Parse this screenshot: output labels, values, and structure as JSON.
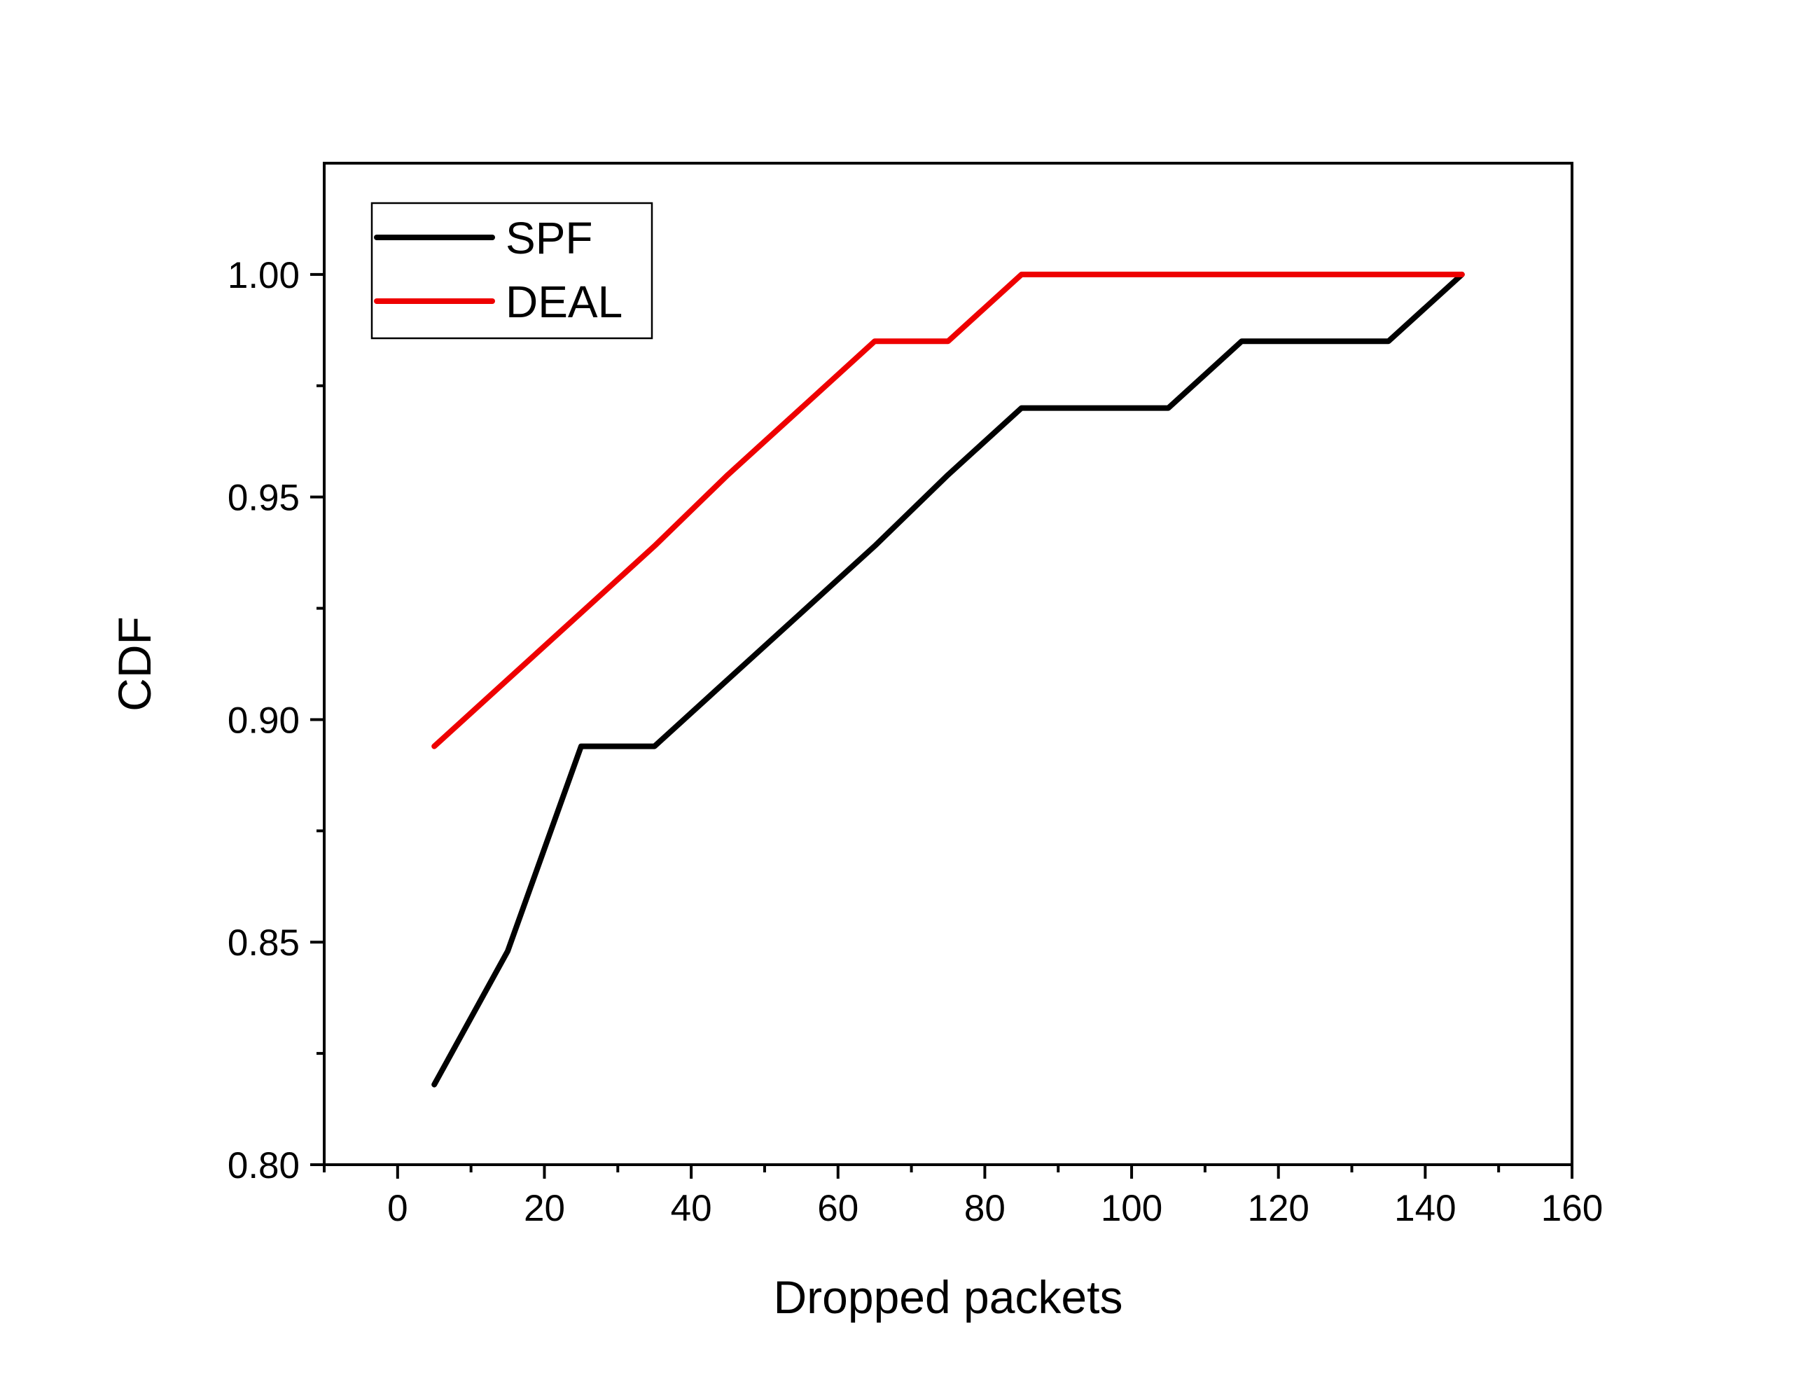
{
  "chart_data": {
    "type": "line",
    "xlabel": "Dropped packets",
    "ylabel": "CDF",
    "xlim": [
      -10,
      160
    ],
    "ylim": [
      0.8,
      1.025
    ],
    "xticks": [
      0,
      20,
      40,
      60,
      80,
      100,
      120,
      140,
      160
    ],
    "xtick_labels": [
      "0",
      "20",
      "40",
      "60",
      "80",
      "100",
      "120",
      "140",
      "160"
    ],
    "xminor": [
      -10,
      10,
      30,
      50,
      70,
      90,
      110,
      130,
      150
    ],
    "yticks": [
      0.8,
      0.85,
      0.9,
      0.95,
      1.0
    ],
    "ytick_labels": [
      "0.80",
      "0.85",
      "0.90",
      "0.95",
      "1.00"
    ],
    "yminor": [
      0.825,
      0.875,
      0.925,
      0.975
    ],
    "grid": false,
    "legend_position": "top-left",
    "series": [
      {
        "name": "SPF",
        "color": "#000000",
        "x": [
          5,
          15,
          25,
          35,
          45,
          55,
          65,
          75,
          85,
          95,
          105,
          115,
          125,
          135,
          145
        ],
        "y": [
          0.818,
          0.848,
          0.894,
          0.894,
          0.909,
          0.924,
          0.939,
          0.955,
          0.97,
          0.97,
          0.97,
          0.985,
          0.985,
          0.985,
          1.0
        ]
      },
      {
        "name": "DEAL",
        "color": "#ee0000",
        "x": [
          5,
          15,
          25,
          35,
          45,
          55,
          65,
          75,
          85,
          95,
          105,
          115,
          125,
          135,
          145
        ],
        "y": [
          0.894,
          0.909,
          0.924,
          0.939,
          0.955,
          0.97,
          0.985,
          0.985,
          1.0,
          1.0,
          1.0,
          1.0,
          1.0,
          1.0,
          1.0
        ]
      }
    ]
  }
}
